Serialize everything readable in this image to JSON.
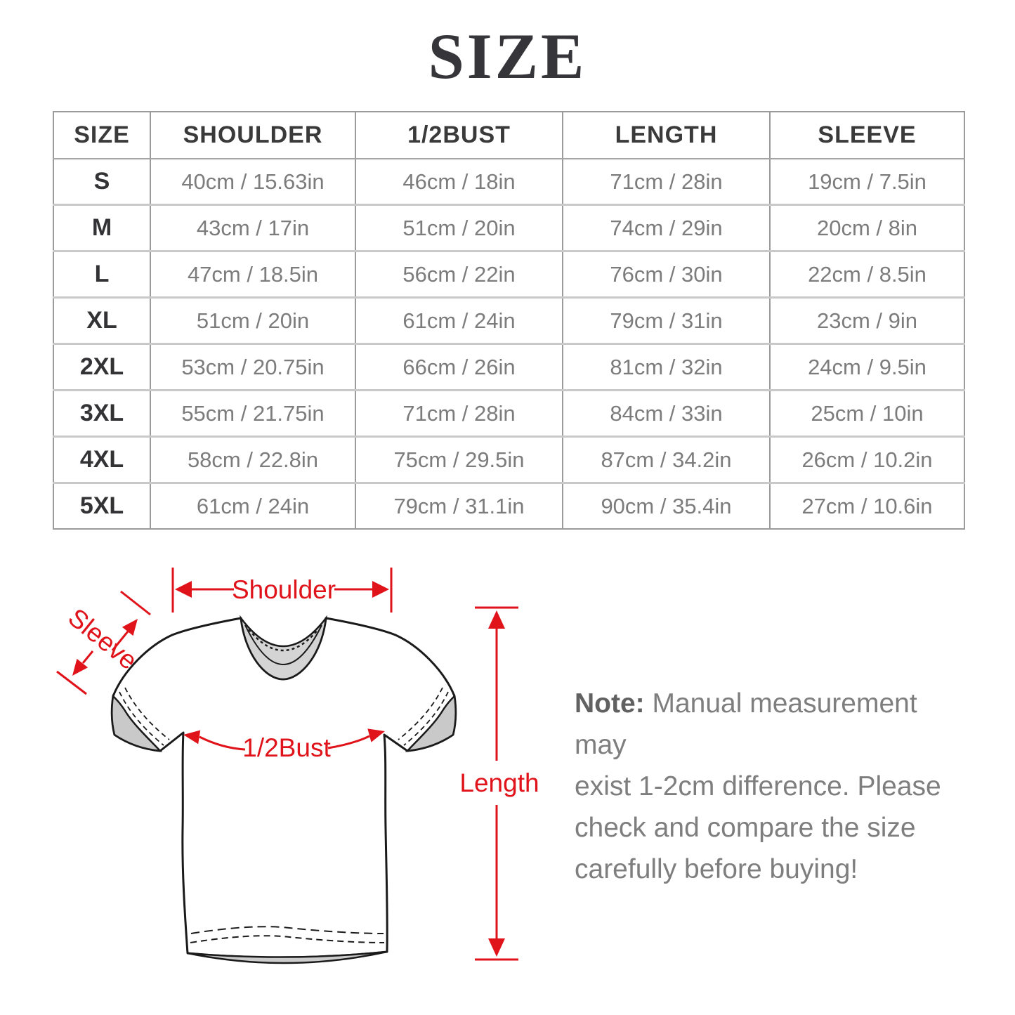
{
  "title": "SIZE",
  "table": {
    "headers": [
      "SIZE",
      "SHOULDER",
      "1/2BUST",
      "LENGTH",
      "SLEEVE"
    ],
    "rows": [
      {
        "size": "S",
        "shoulder": "40cm / 15.63in",
        "bust": "46cm / 18in",
        "length": "71cm / 28in",
        "sleeve": "19cm / 7.5in"
      },
      {
        "size": "M",
        "shoulder": "43cm / 17in",
        "bust": "51cm / 20in",
        "length": "74cm / 29in",
        "sleeve": "20cm / 8in"
      },
      {
        "size": "L",
        "shoulder": "47cm / 18.5in",
        "bust": "56cm / 22in",
        "length": "76cm / 30in",
        "sleeve": "22cm / 8.5in"
      },
      {
        "size": "XL",
        "shoulder": "51cm / 20in",
        "bust": "61cm / 24in",
        "length": "79cm / 31in",
        "sleeve": "23cm / 9in"
      },
      {
        "size": "2XL",
        "shoulder": "53cm / 20.75in",
        "bust": "66cm / 26in",
        "length": "81cm / 32in",
        "sleeve": "24cm / 9.5in"
      },
      {
        "size": "3XL",
        "shoulder": "55cm / 21.75in",
        "bust": "71cm / 28in",
        "length": "84cm / 33in",
        "sleeve": "25cm / 10in"
      },
      {
        "size": "4XL",
        "shoulder": "58cm / 22.8in",
        "bust": "75cm / 29.5in",
        "length": "87cm / 34.2in",
        "sleeve": "26cm / 10.2in"
      },
      {
        "size": "5XL",
        "shoulder": "61cm / 24in",
        "bust": "79cm / 31.1in",
        "length": "90cm / 35.4in",
        "sleeve": "27cm / 10.6in"
      }
    ]
  },
  "diagram": {
    "labels": {
      "shoulder": "Shoulder",
      "sleeve": "Sleeve",
      "bust": "1/2Bust",
      "length": "Length"
    },
    "annotation_color": "#e0131b"
  },
  "note": {
    "label": "Note:",
    "lines": [
      "Manual measurement may",
      "exist 1-2cm difference. Please",
      "check and compare the size",
      "carefully before buying!"
    ]
  },
  "colors": {
    "accent_red": "#e0131b",
    "title_text": "#36363a",
    "header_text": "#3a3a3a",
    "value_text": "#7c7c7c",
    "note_text": "#7e7e7e",
    "table_border": "#9b9b9b",
    "row_divider": "#c9c9c9"
  }
}
